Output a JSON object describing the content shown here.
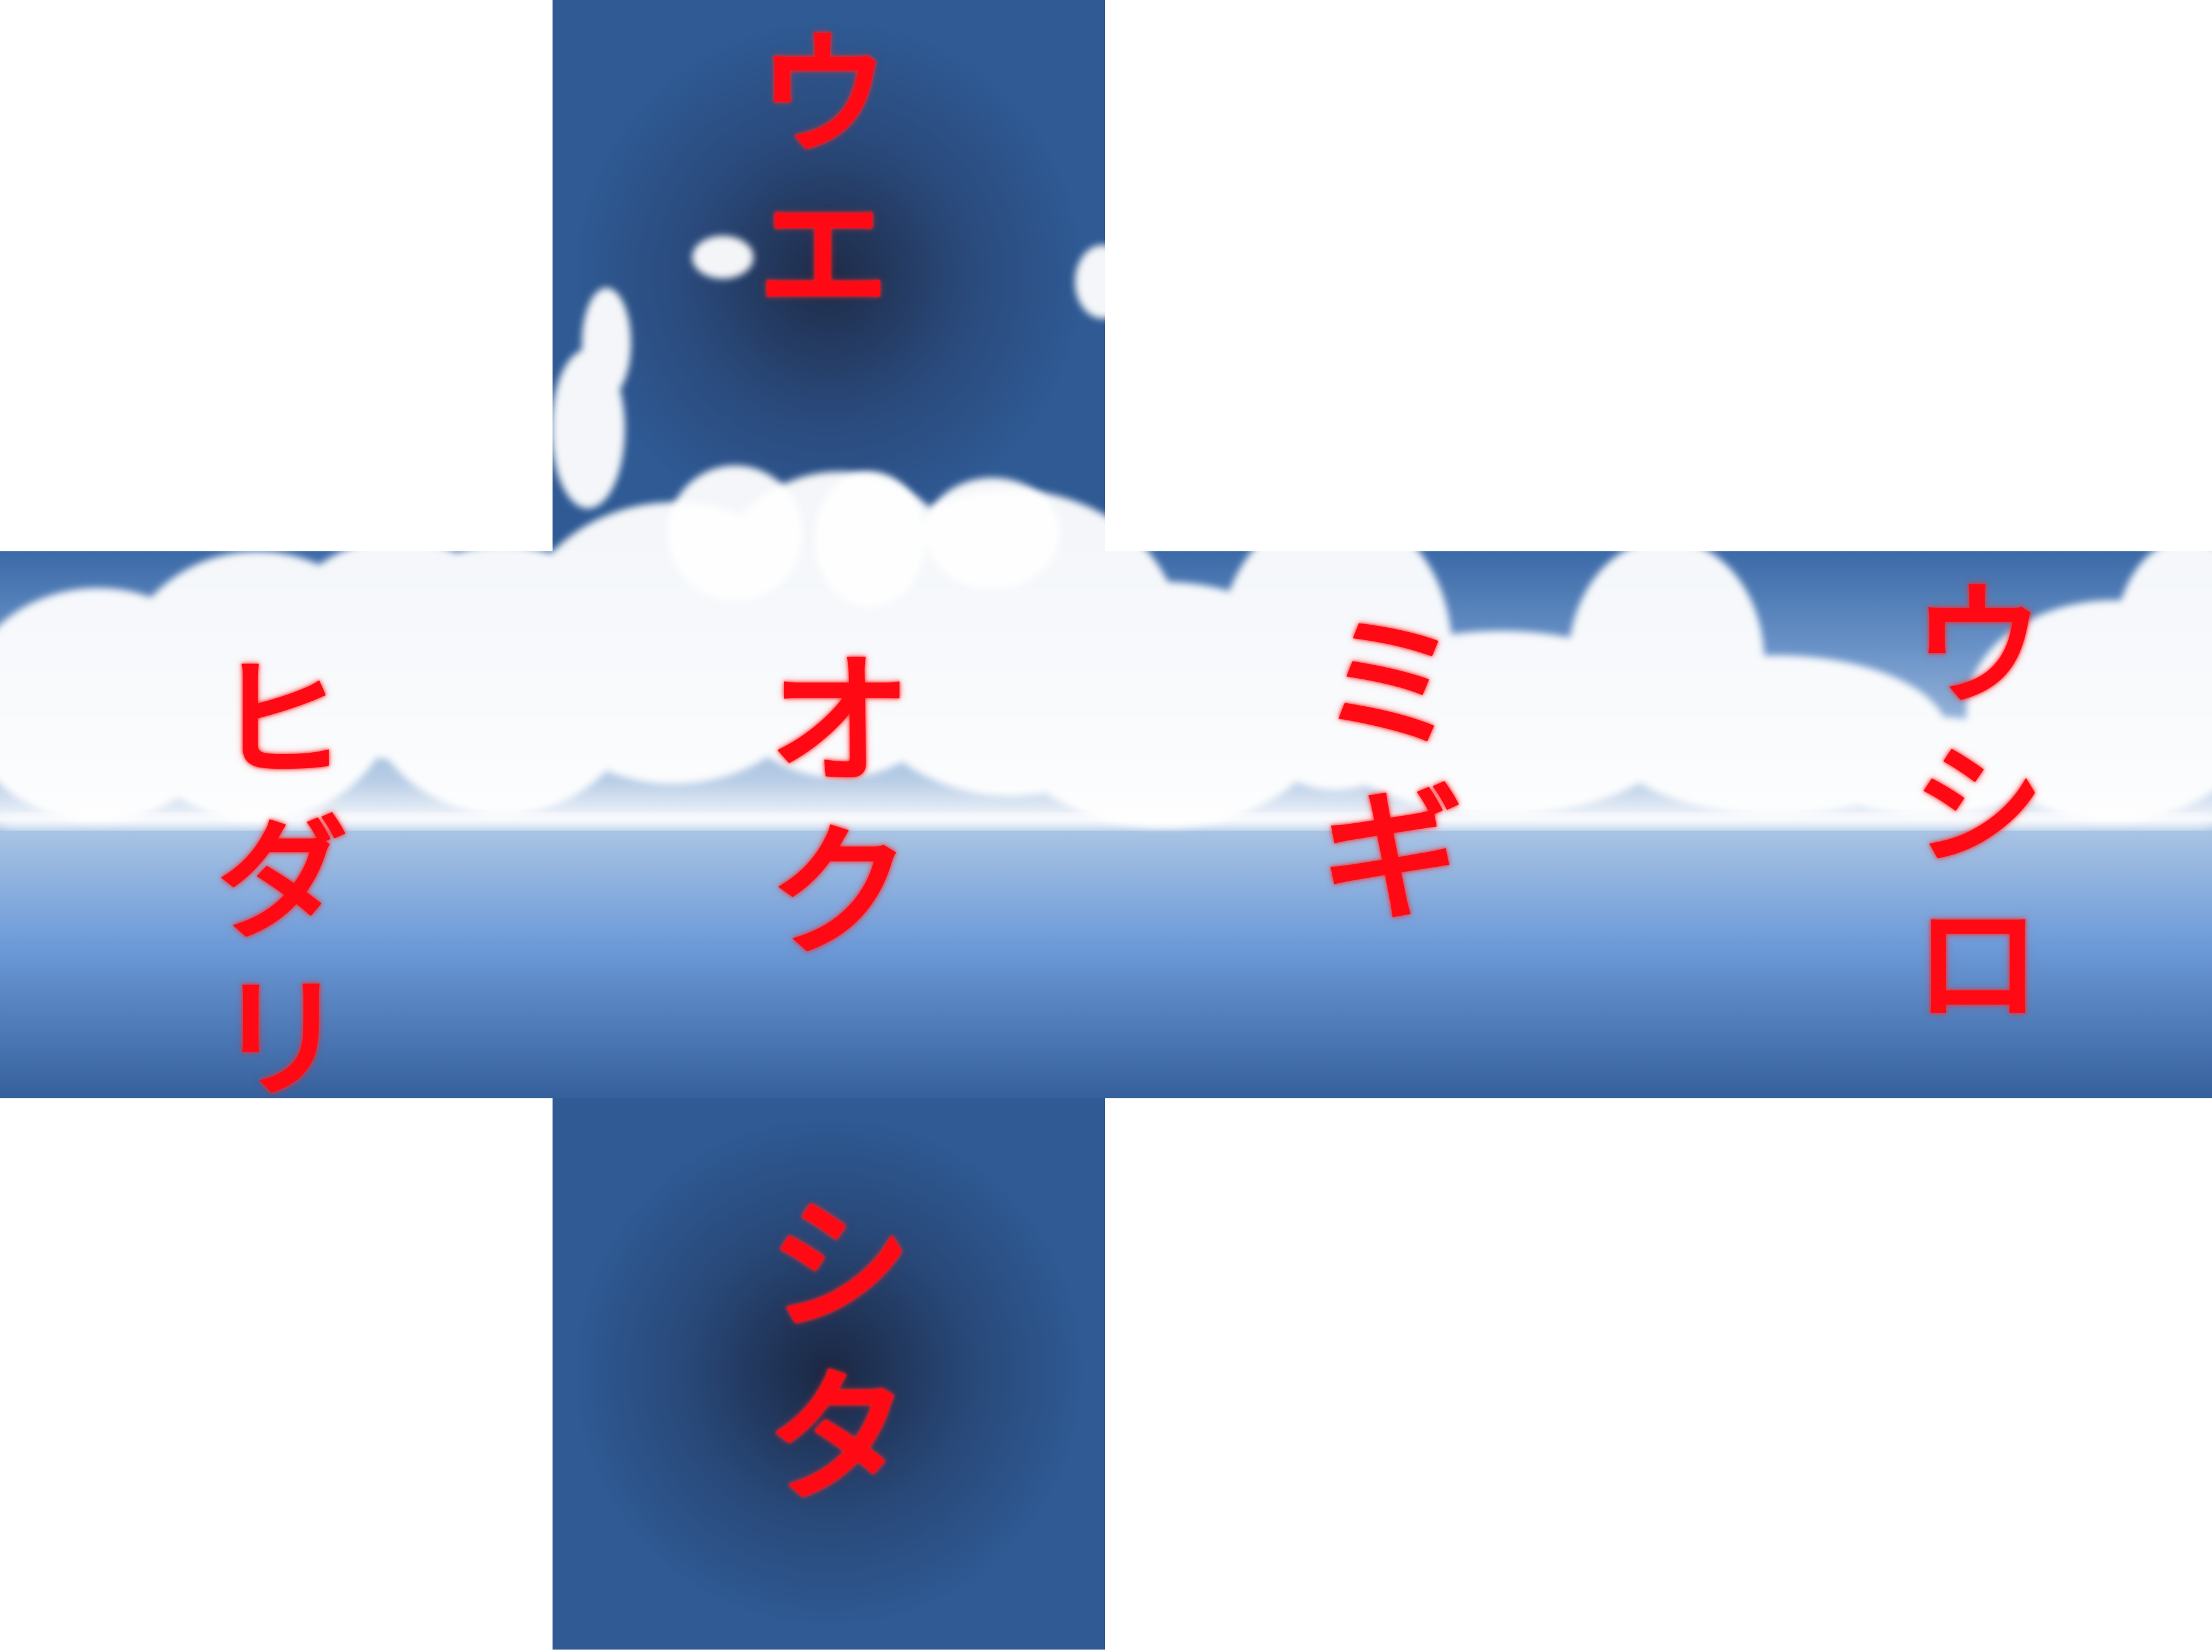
{
  "skybox": {
    "faces": {
      "top": {
        "label": "ウエ"
      },
      "left": {
        "label": "ヒダリ"
      },
      "front": {
        "label": "オク"
      },
      "right": {
        "label": "ミギ"
      },
      "back": {
        "label": "ウシロ"
      },
      "bottom": {
        "label": "シタ"
      }
    },
    "colors": {
      "sky_blue": "#2f5a94",
      "sky_center_dark": "#1e2b47",
      "horizon_light": "#e8eef6",
      "lower_band": "#6d9ad8",
      "cloud_white": "#ffffff",
      "label_red": "#ff0a14"
    }
  }
}
